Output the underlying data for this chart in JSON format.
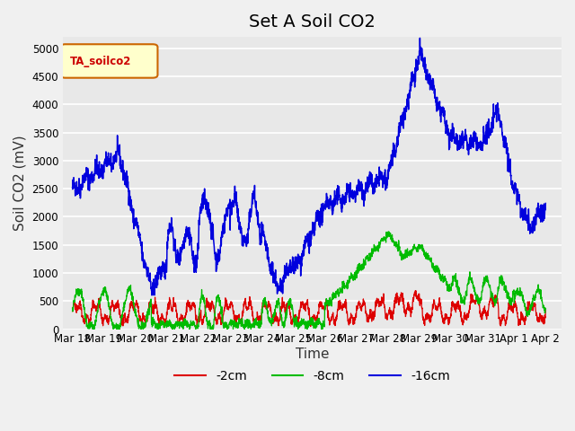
{
  "title": "Set A Soil CO2",
  "ylabel": "Soil CO2 (mV)",
  "xlabel": "Time",
  "legend_label": "TA_soilco2",
  "series_labels": [
    "-2cm",
    "-8cm",
    "-16cm"
  ],
  "series_colors": [
    "#dd0000",
    "#00bb00",
    "#0000dd"
  ],
  "ylim": [
    0,
    5200
  ],
  "yticks": [
    0,
    500,
    1000,
    1500,
    2000,
    2500,
    3000,
    3500,
    4000,
    4500,
    5000
  ],
  "xtick_vals": [
    0,
    1,
    2,
    3,
    4,
    5,
    6,
    7,
    8,
    9,
    10,
    11,
    12,
    13,
    14,
    15
  ],
  "xtick_labels": [
    "Mar 18",
    "Mar 19",
    "Mar 20",
    "Mar 21",
    "Mar 22",
    "Mar 23",
    "Mar 24",
    "Mar 25",
    "Mar 26",
    "Mar 27",
    "Mar 28",
    "Mar 29",
    "Mar 30",
    "Mar 31",
    "Apr 1",
    "Apr 2"
  ],
  "bg_color": "#e8e8e8",
  "fig_bg": "#f0f0f0",
  "title_fontsize": 14,
  "label_fontsize": 11
}
